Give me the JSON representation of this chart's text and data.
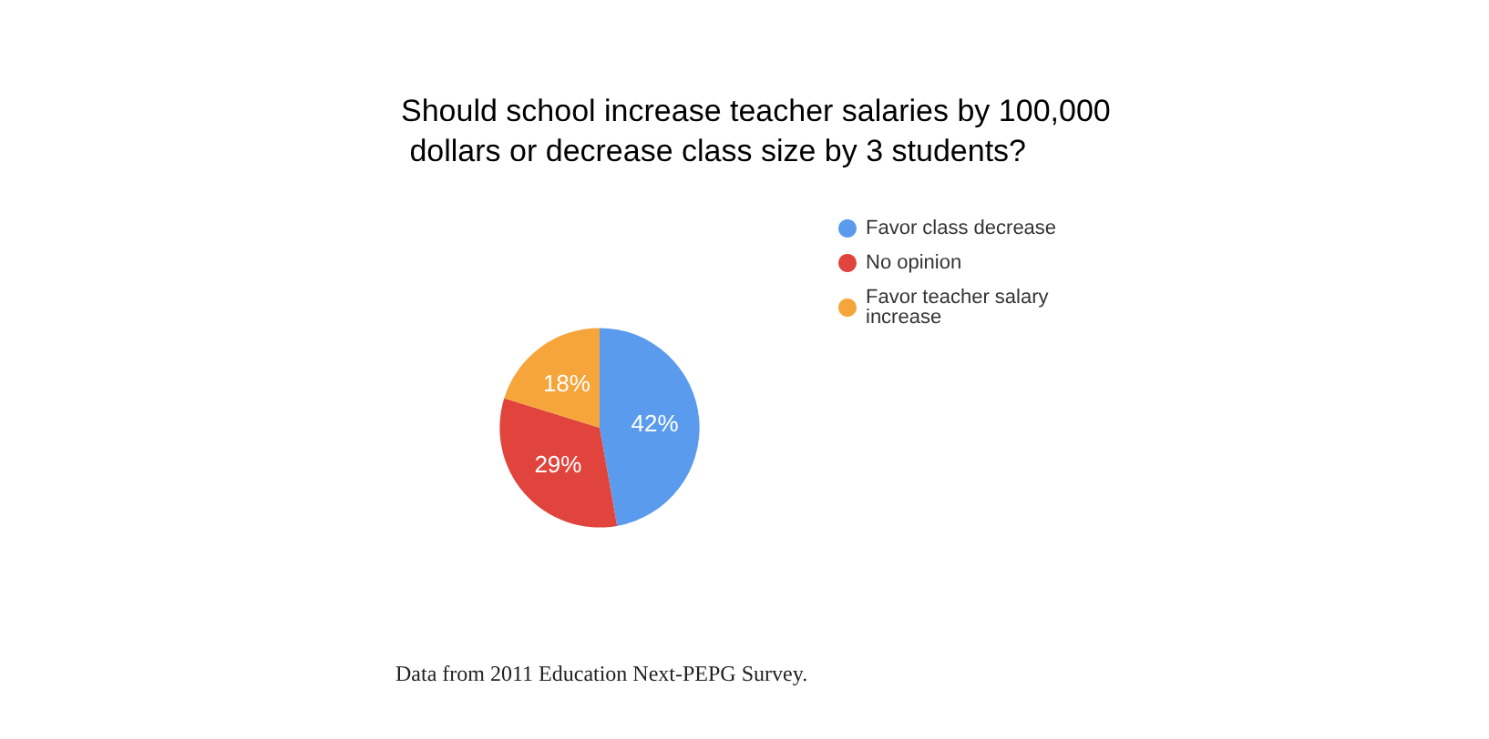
{
  "chart_data": {
    "type": "pie",
    "title": "Should school increase teacher salaries by 100,000 dollars or decrease class size by 3 students?",
    "categories": [
      "Favor class decrease",
      "No opinion",
      "Favor teacher salary increase"
    ],
    "values": [
      42,
      29,
      18
    ],
    "value_labels": [
      "42%",
      "29%",
      "18%"
    ],
    "colors": [
      "#5a9bee",
      "#e0443c",
      "#f6a53a"
    ],
    "legend": "right",
    "annotations": [
      "Data from 2011 Education Next-PEPG Survey."
    ]
  }
}
